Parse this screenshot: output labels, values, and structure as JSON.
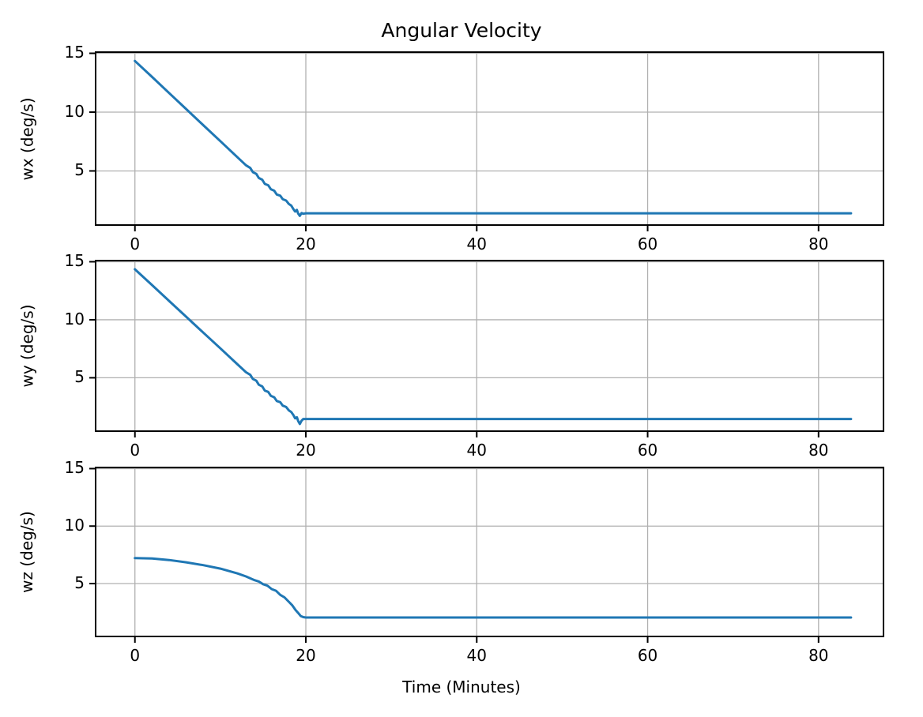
{
  "title": "Angular Velocity",
  "xlabel": "Time (Minutes)",
  "colors": {
    "line": "#1f77b4",
    "grid": "#b0b0b0",
    "spine": "#000000",
    "text": "#000000",
    "background": "#ffffff"
  },
  "chart_data": [
    {
      "type": "line",
      "ylabel": "wx (deg/s)",
      "xlabel": "",
      "x_ticks": [
        0,
        20,
        40,
        60,
        80
      ],
      "y_ticks": [
        5,
        10,
        15
      ],
      "xlim": [
        -4.6,
        87.6
      ],
      "ylim": [
        0.4,
        15.1
      ],
      "grid": true,
      "legend": "none",
      "series": [
        {
          "name": "wx",
          "color": "#1f77b4",
          "x": [
            0,
            2,
            4,
            6,
            8,
            10,
            12,
            13,
            13.5,
            13.8,
            14.2,
            14.5,
            14.9,
            15.2,
            15.6,
            15.9,
            16.3,
            16.6,
            17.0,
            17.3,
            17.7,
            18.0,
            18.3,
            18.55,
            18.75,
            18.95,
            19.1,
            19.3,
            19.5,
            19.7,
            20.0,
            30,
            50,
            83.8
          ],
          "y": [
            14.35,
            12.99,
            11.62,
            10.26,
            8.89,
            7.53,
            6.16,
            5.48,
            5.25,
            4.9,
            4.75,
            4.4,
            4.25,
            3.9,
            3.78,
            3.45,
            3.32,
            3.0,
            2.9,
            2.6,
            2.48,
            2.2,
            2.05,
            1.75,
            1.55,
            1.68,
            1.38,
            1.18,
            1.42,
            1.36,
            1.4,
            1.4,
            1.4,
            1.4
          ]
        }
      ]
    },
    {
      "type": "line",
      "ylabel": "wy (deg/s)",
      "xlabel": "",
      "x_ticks": [
        0,
        20,
        40,
        60,
        80
      ],
      "y_ticks": [
        5,
        10,
        15
      ],
      "xlim": [
        -4.6,
        87.6
      ],
      "ylim": [
        0.4,
        15.1
      ],
      "grid": true,
      "legend": "none",
      "series": [
        {
          "name": "wy",
          "color": "#1f77b4",
          "x": [
            0,
            2,
            4,
            6,
            8,
            10,
            12,
            13,
            13.5,
            13.8,
            14.2,
            14.5,
            14.9,
            15.2,
            15.6,
            15.9,
            16.3,
            16.6,
            17.0,
            17.3,
            17.7,
            18.0,
            18.3,
            18.55,
            18.75,
            18.95,
            19.1,
            19.3,
            19.5,
            19.7,
            20.0,
            30,
            50,
            83.8
          ],
          "y": [
            14.35,
            12.99,
            11.62,
            10.26,
            8.89,
            7.53,
            6.16,
            5.48,
            5.25,
            4.9,
            4.75,
            4.4,
            4.25,
            3.9,
            3.78,
            3.45,
            3.32,
            3.0,
            2.9,
            2.6,
            2.48,
            2.2,
            2.05,
            1.78,
            1.5,
            1.6,
            1.28,
            1.02,
            1.3,
            1.45,
            1.45,
            1.45,
            1.45,
            1.45
          ]
        }
      ]
    },
    {
      "type": "line",
      "ylabel": "wz (deg/s)",
      "xlabel": "Time (Minutes)",
      "x_ticks": [
        0,
        20,
        40,
        60,
        80
      ],
      "y_ticks": [
        5,
        10,
        15
      ],
      "xlim": [
        -4.6,
        87.6
      ],
      "ylim": [
        0.4,
        15.1
      ],
      "grid": true,
      "legend": "none",
      "series": [
        {
          "name": "wz",
          "color": "#1f77b4",
          "x": [
            0,
            2,
            4,
            6,
            8,
            10,
            12,
            13,
            14,
            14.5,
            15,
            15.5,
            16,
            16.5,
            17,
            17.5,
            18,
            18.4,
            18.8,
            19.1,
            19.4,
            19.7,
            20,
            30,
            50,
            83.8
          ],
          "y": [
            7.22,
            7.18,
            7.05,
            6.85,
            6.6,
            6.3,
            5.88,
            5.62,
            5.3,
            5.18,
            4.95,
            4.82,
            4.52,
            4.38,
            4.02,
            3.8,
            3.42,
            3.12,
            2.7,
            2.45,
            2.18,
            2.08,
            2.05,
            2.05,
            2.05,
            2.05
          ]
        }
      ]
    }
  ]
}
